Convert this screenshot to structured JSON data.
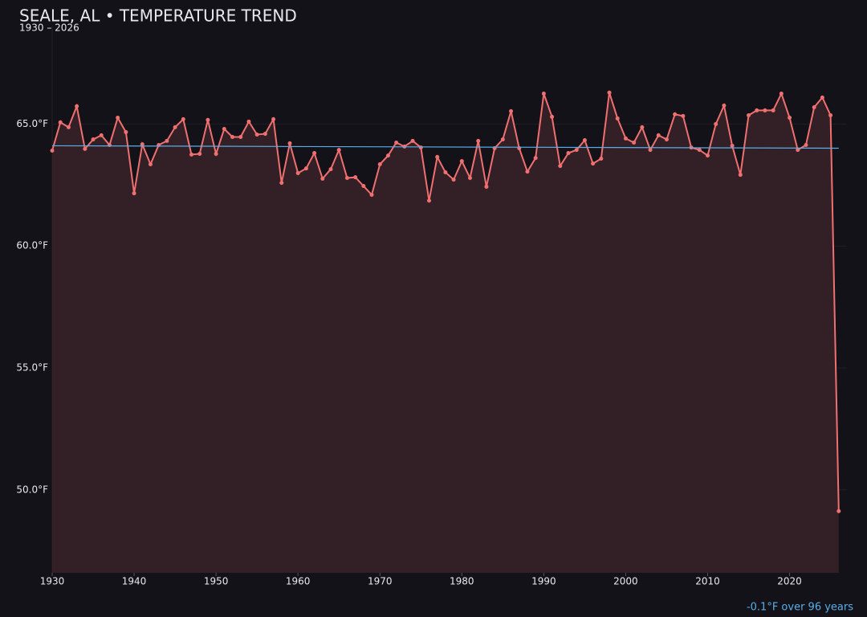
{
  "chart_data": {
    "type": "line",
    "title": "SEALE, AL • TEMPERATURE TREND",
    "subtitle": "1930 – 2026",
    "x": [
      1930,
      1931,
      1932,
      1933,
      1934,
      1935,
      1936,
      1937,
      1938,
      1939,
      1940,
      1941,
      1942,
      1943,
      1944,
      1945,
      1946,
      1947,
      1948,
      1949,
      1950,
      1951,
      1952,
      1953,
      1954,
      1955,
      1956,
      1957,
      1958,
      1959,
      1960,
      1961,
      1962,
      1963,
      1964,
      1965,
      1966,
      1967,
      1968,
      1969,
      1970,
      1971,
      1972,
      1973,
      1974,
      1975,
      1976,
      1977,
      1978,
      1979,
      1980,
      1981,
      1982,
      1983,
      1984,
      1985,
      1986,
      1987,
      1988,
      1989,
      1990,
      1991,
      1992,
      1993,
      1994,
      1995,
      1996,
      1997,
      1998,
      1999,
      2000,
      2001,
      2002,
      2003,
      2004,
      2005,
      2006,
      2007,
      2008,
      2009,
      2010,
      2011,
      2012,
      2013,
      2014,
      2015,
      2016,
      2017,
      2018,
      2019,
      2020,
      2021,
      2022,
      2023,
      2024,
      2025,
      2026
    ],
    "series": [
      {
        "color": "#f07070",
        "area_color": "#331f26",
        "values": [
          63.91,
          65.07,
          64.87,
          65.73,
          63.98,
          64.37,
          64.54,
          64.14,
          65.26,
          64.67,
          62.16,
          64.17,
          63.35,
          64.14,
          64.31,
          64.87,
          65.2,
          63.75,
          63.78,
          65.17,
          63.78,
          64.8,
          64.47,
          64.47,
          65.1,
          64.57,
          64.6,
          65.2,
          62.59,
          64.21,
          62.99,
          63.18,
          63.81,
          62.76,
          63.15,
          63.94,
          62.79,
          62.82,
          62.46,
          62.1,
          63.35,
          63.71,
          64.24,
          64.08,
          64.31,
          64.04,
          61.86,
          63.65,
          63.02,
          62.72,
          63.48,
          62.79,
          64.31,
          62.43,
          64.01,
          64.37,
          65.53,
          64.01,
          63.05,
          63.61,
          66.25,
          65.3,
          63.28,
          63.81,
          63.94,
          64.34,
          63.38,
          63.58,
          66.29,
          65.23,
          64.41,
          64.24,
          64.87,
          63.94,
          64.54,
          64.37,
          65.4,
          65.33,
          64.04,
          63.94,
          63.71,
          65.0,
          65.76,
          64.11,
          62.92,
          65.36,
          65.56,
          65.56,
          65.56,
          66.25,
          65.26,
          63.94,
          64.14,
          65.69,
          66.09,
          65.36,
          49.13
        ]
      }
    ],
    "trend": {
      "x": [
        1930,
        2026
      ],
      "values": [
        64.11,
        64.01
      ],
      "color": "#5aaee8",
      "label": "-0.1°F over 96 years"
    },
    "xlim": [
      1930,
      2027
    ],
    "xticks": [
      1930,
      1940,
      1950,
      1960,
      1970,
      1980,
      1990,
      2000,
      2010,
      2020
    ],
    "ylim": [
      46.6,
      69.0
    ],
    "yticks": [
      {
        "value": 50,
        "label": "50.0°F"
      },
      {
        "value": 55,
        "label": "55.0°F"
      },
      {
        "value": 60,
        "label": "60.0°F"
      },
      {
        "value": 65,
        "label": "65.0°F"
      }
    ],
    "grid": true
  }
}
